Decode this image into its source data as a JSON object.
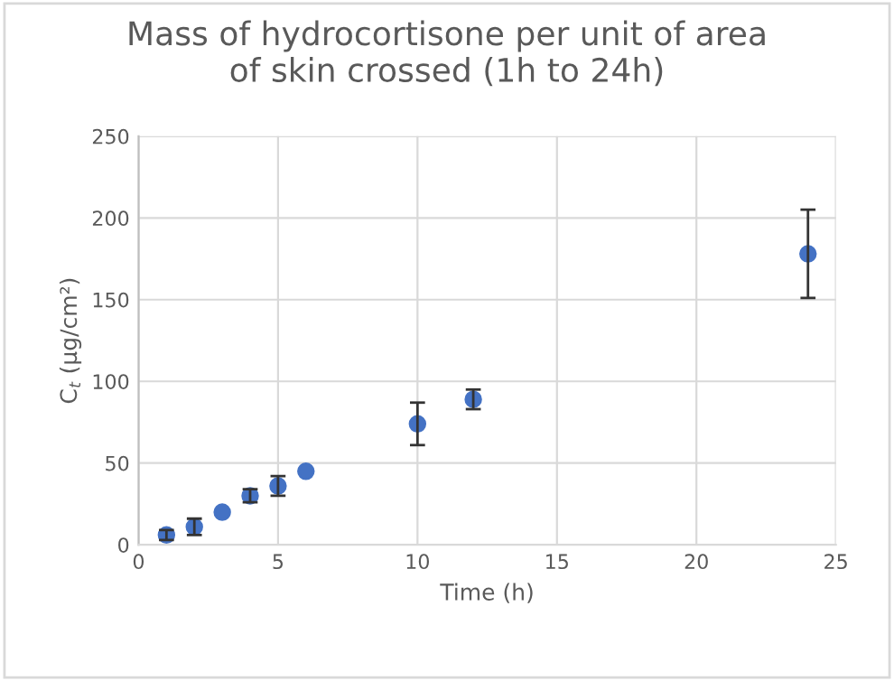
{
  "chart_data": {
    "type": "scatter",
    "title": "Mass of hydrocortisone per unit of area\nof skin crossed (1h to 24h)",
    "xlabel": "Time (h)",
    "ylabel": "C$_{t}$ (µg/cm²)",
    "x": [
      1,
      2,
      3,
      4,
      5,
      6,
      10,
      12,
      24
    ],
    "series": [
      {
        "color": "#4472c4",
        "values": [
          6,
          11,
          20,
          30,
          36,
          45,
          74,
          89,
          178
        ],
        "errors": [
          3,
          5,
          null,
          4,
          6,
          null,
          13,
          6,
          27
        ]
      }
    ],
    "xlim": [
      0,
      25
    ],
    "ylim": [
      0,
      250
    ],
    "xticks": [
      0,
      5,
      10,
      15,
      20,
      25
    ],
    "yticks": [
      0,
      50,
      100,
      150,
      200,
      250
    ],
    "grid": true,
    "marker": "circle"
  }
}
